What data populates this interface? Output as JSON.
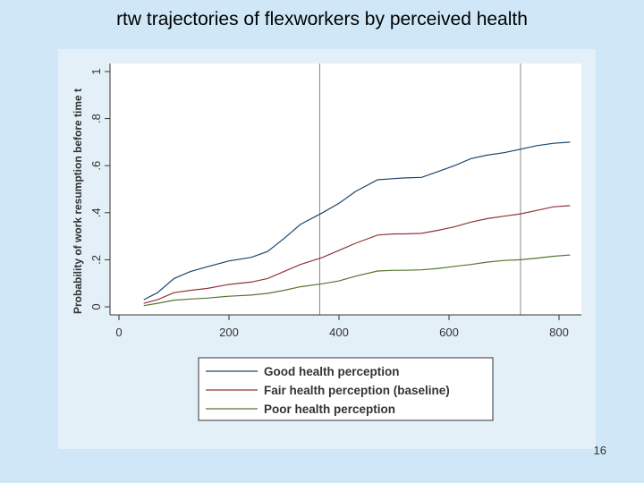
{
  "slide": {
    "title": "rtw trajectories of flexworkers by perceived health",
    "page_number": "16"
  },
  "chart_data": {
    "type": "line",
    "title": "",
    "xlabel": "",
    "ylabel": "Probability of work resumption before time t",
    "xlim": [
      0,
      830
    ],
    "ylim": [
      0,
      1
    ],
    "xticks": [
      0,
      200,
      400,
      600,
      800
    ],
    "yticks": [
      0,
      0.2,
      0.4,
      0.6,
      0.8,
      1
    ],
    "ytick_labels": [
      "0",
      ".2",
      ".4",
      ".6",
      ".8",
      "1"
    ],
    "reference_lines_x": [
      365,
      730
    ],
    "grid": false,
    "legend_position": "bottom",
    "series": [
      {
        "name": "Good health perception",
        "color": "#1a476f",
        "x": [
          45,
          70,
          100,
          130,
          160,
          200,
          240,
          270,
          300,
          330,
          370,
          400,
          430,
          470,
          500,
          520,
          550,
          580,
          610,
          640,
          670,
          700,
          730,
          760,
          790,
          820
        ],
        "y": [
          0.03,
          0.06,
          0.12,
          0.15,
          0.17,
          0.195,
          0.21,
          0.235,
          0.29,
          0.35,
          0.4,
          0.44,
          0.49,
          0.54,
          0.545,
          0.548,
          0.55,
          0.575,
          0.6,
          0.63,
          0.645,
          0.655,
          0.67,
          0.685,
          0.695,
          0.7
        ]
      },
      {
        "name": "Fair health perception (baseline)",
        "color": "#90353b",
        "x": [
          45,
          70,
          100,
          130,
          160,
          200,
          240,
          270,
          300,
          330,
          370,
          400,
          430,
          470,
          500,
          520,
          550,
          580,
          610,
          640,
          670,
          700,
          730,
          760,
          790,
          820
        ],
        "y": [
          0.015,
          0.03,
          0.06,
          0.07,
          0.078,
          0.095,
          0.105,
          0.12,
          0.15,
          0.18,
          0.21,
          0.24,
          0.27,
          0.305,
          0.31,
          0.31,
          0.312,
          0.325,
          0.34,
          0.36,
          0.375,
          0.385,
          0.395,
          0.41,
          0.425,
          0.43
        ]
      },
      {
        "name": "Poor health perception",
        "color": "#55752f",
        "x": [
          45,
          70,
          100,
          130,
          160,
          200,
          240,
          270,
          300,
          330,
          370,
          400,
          430,
          470,
          500,
          520,
          550,
          580,
          610,
          640,
          670,
          700,
          730,
          760,
          790,
          820
        ],
        "y": [
          0.005,
          0.015,
          0.028,
          0.033,
          0.037,
          0.045,
          0.05,
          0.057,
          0.07,
          0.085,
          0.098,
          0.11,
          0.13,
          0.152,
          0.155,
          0.155,
          0.157,
          0.163,
          0.172,
          0.18,
          0.19,
          0.197,
          0.2,
          0.207,
          0.215,
          0.22
        ]
      }
    ]
  }
}
